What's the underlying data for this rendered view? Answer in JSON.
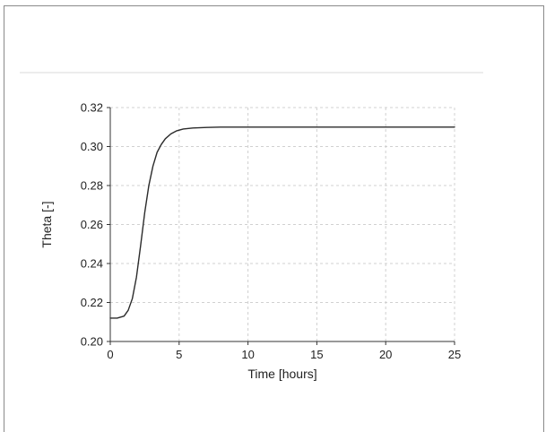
{
  "chart_data": {
    "type": "line",
    "title": "",
    "xlabel": "Time [hours]",
    "ylabel": "Theta [-]",
    "xlim": [
      0,
      25
    ],
    "ylim": [
      0.2,
      0.32
    ],
    "grid": true,
    "x_ticks": [
      0,
      5,
      10,
      15,
      20,
      25
    ],
    "x_tick_labels": [
      "0",
      "5",
      "10",
      "15",
      "20",
      "25"
    ],
    "y_ticks": [
      0.2,
      0.22,
      0.24,
      0.26,
      0.28,
      0.3,
      0.32
    ],
    "y_tick_labels": [
      "0.20",
      "0.22",
      "0.24",
      "0.26",
      "0.28",
      "0.30",
      "0.32"
    ],
    "line_color": "#2b2b2b",
    "grid_color": "#d0d0d0",
    "series": [
      {
        "x": [
          0,
          0.5,
          1.0,
          1.3,
          1.6,
          1.9,
          2.2,
          2.5,
          2.8,
          3.1,
          3.4,
          3.7,
          4.0,
          4.4,
          4.8,
          5.3,
          6.0,
          7.0,
          8.0,
          10,
          15,
          20,
          25
        ],
        "y": [
          0.212,
          0.212,
          0.213,
          0.216,
          0.222,
          0.233,
          0.249,
          0.266,
          0.28,
          0.29,
          0.297,
          0.301,
          0.304,
          0.3065,
          0.308,
          0.309,
          0.3095,
          0.3098,
          0.31,
          0.31,
          0.31,
          0.31,
          0.31
        ]
      }
    ]
  }
}
